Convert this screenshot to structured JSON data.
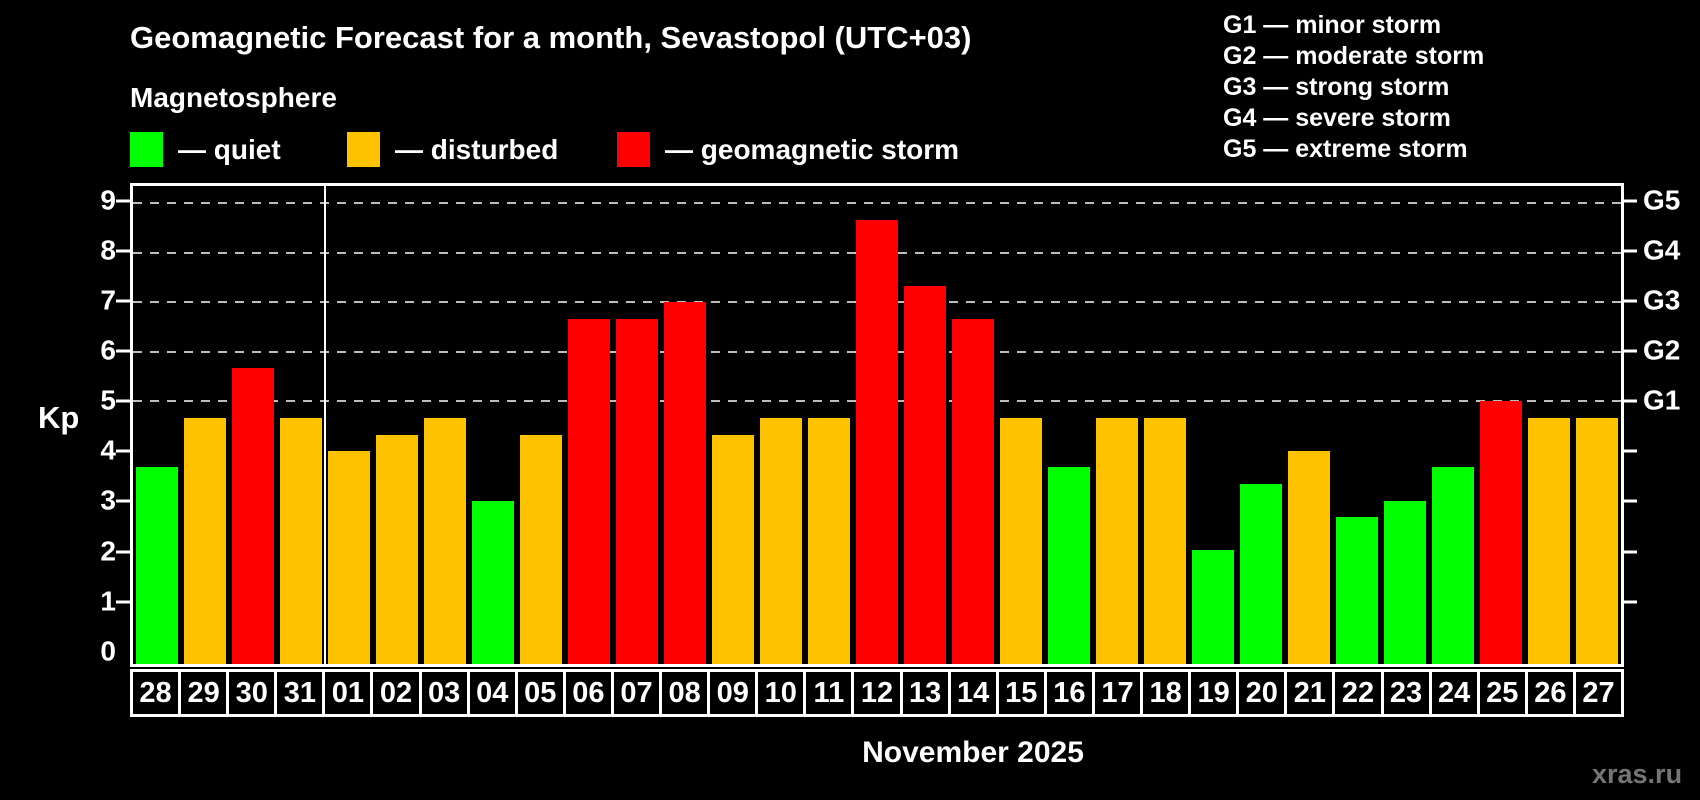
{
  "title": "Geomagnetic Forecast for a month, Sevastopol (UTC+03)",
  "subtitle": "Magnetosphere",
  "legend": {
    "items": [
      {
        "key": "quiet",
        "label": "— quiet"
      },
      {
        "key": "disturbed",
        "label": "— disturbed"
      },
      {
        "key": "storm",
        "label": "— geomagnetic storm"
      }
    ]
  },
  "g_legend": {
    "items": [
      "G1 — minor storm",
      "G2 — moderate storm",
      "G3 — strong storm",
      "G4 — severe storm",
      "G5 — extreme storm"
    ]
  },
  "left_axis": {
    "label": "Kp",
    "tick_values": [
      0,
      1,
      2,
      3,
      4,
      5,
      6,
      7,
      8,
      9
    ]
  },
  "right_axis": {
    "labels": [
      {
        "kp": 9,
        "text": "G5"
      },
      {
        "kp": 8,
        "text": "G4"
      },
      {
        "kp": 7,
        "text": "G3"
      },
      {
        "kp": 6,
        "text": "G2"
      },
      {
        "kp": 5,
        "text": "G1"
      }
    ],
    "tick_values": [
      1,
      2,
      3,
      4,
      5,
      6,
      7,
      8,
      9
    ]
  },
  "chart_data": {
    "type": "bar",
    "title": "Geomagnetic Forecast for a month, Sevastopol (UTC+03)",
    "ylabel": "Kp",
    "ylim": [
      -0.3,
      9.35
    ],
    "gridlines_kp": [
      5,
      6,
      7,
      8,
      9
    ],
    "grid": "dashed horizontal at G1–G5 levels",
    "legend_position": "top-left and top-right",
    "categories": [
      "28",
      "29",
      "30",
      "31",
      "01",
      "02",
      "03",
      "04",
      "05",
      "06",
      "07",
      "08",
      "09",
      "10",
      "11",
      "12",
      "13",
      "14",
      "15",
      "16",
      "17",
      "18",
      "19",
      "20",
      "21",
      "22",
      "23",
      "24",
      "25",
      "26",
      "27"
    ],
    "values": [
      3.67,
      4.67,
      5.67,
      4.67,
      4.0,
      4.33,
      4.67,
      3.0,
      4.33,
      6.67,
      6.67,
      7.0,
      4.33,
      4.67,
      4.67,
      8.67,
      7.33,
      6.67,
      4.67,
      3.67,
      4.67,
      4.67,
      2.0,
      3.33,
      4.0,
      2.67,
      3.0,
      3.67,
      5.0,
      4.67,
      4.67
    ],
    "statuses": [
      "quiet",
      "disturbed",
      "storm",
      "disturbed",
      "disturbed",
      "disturbed",
      "disturbed",
      "quiet",
      "disturbed",
      "storm",
      "storm",
      "storm",
      "disturbed",
      "disturbed",
      "disturbed",
      "storm",
      "storm",
      "storm",
      "disturbed",
      "quiet",
      "disturbed",
      "disturbed",
      "quiet",
      "quiet",
      "disturbed",
      "quiet",
      "quiet",
      "quiet",
      "storm",
      "disturbed",
      "disturbed"
    ],
    "month_separator_index": 3
  },
  "colors": {
    "quiet": "#00ff00",
    "disturbed": "#ffc200",
    "storm": "#ff0000",
    "background": "#000000",
    "grid": "#bdbdbd",
    "text": "#ffffff",
    "watermark": "#757575"
  },
  "footer": {
    "month_label": "November 2025",
    "watermark": "xras.ru"
  }
}
